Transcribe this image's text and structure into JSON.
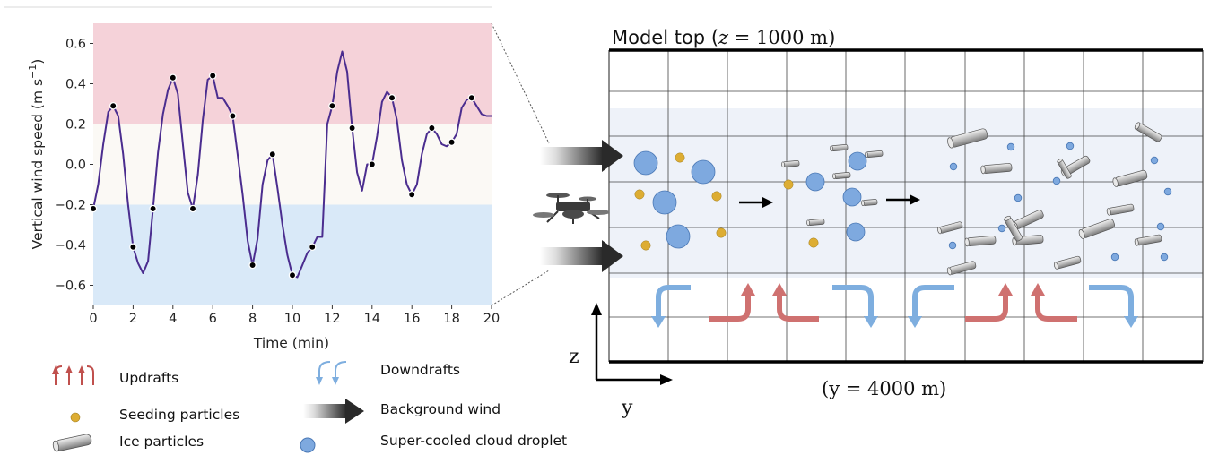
{
  "chart_data": {
    "type": "line",
    "xlabel": "Time (min)",
    "ylabel_main": "Vertical wind speed (m s",
    "ylabel_sup": "−1",
    "ylabel_close": ")",
    "xlim": [
      0,
      20
    ],
    "ylim": [
      -0.7,
      0.7
    ],
    "xticks": [
      0,
      2,
      4,
      6,
      8,
      10,
      12,
      14,
      16,
      18,
      20
    ],
    "yticks": [
      -0.6,
      -0.4,
      -0.2,
      0.0,
      0.2,
      0.4,
      0.6
    ],
    "ytick_labels": [
      "−0.6",
      "−0.4",
      "−0.2",
      "0.0",
      "0.2",
      "0.4",
      "0.6"
    ],
    "bands": [
      {
        "from": 0.2,
        "to": 0.7,
        "color": "#f5d2d9"
      },
      {
        "from": -0.2,
        "to": 0.2,
        "color": "#fbf9f5"
      },
      {
        "from": -0.7,
        "to": -0.2,
        "color": "#d9e9f8"
      }
    ],
    "line_color": "#4b2d8f",
    "series": [
      {
        "x": [
          0,
          0.25,
          0.5,
          0.75,
          1,
          1.25,
          1.5,
          1.75,
          2,
          2.25,
          2.5,
          2.75,
          3,
          3.25,
          3.5,
          3.75,
          4,
          4.25,
          4.5,
          4.75,
          5,
          5.25,
          5.5,
          5.75,
          6,
          6.25,
          6.5,
          6.75,
          7,
          7.25,
          7.5,
          7.75,
          8,
          8.25,
          8.5,
          8.75,
          9,
          9.25,
          9.5,
          9.75,
          10,
          10.25,
          10.5,
          10.75,
          11,
          11.25,
          11.5,
          11.75,
          12,
          12.25,
          12.5,
          12.75,
          13,
          13.25,
          13.5,
          13.75,
          14,
          14.25,
          14.5,
          14.75,
          15,
          15.25,
          15.5,
          15.75,
          16,
          16.25,
          16.5,
          16.75,
          17,
          17.25,
          17.5,
          17.75,
          18,
          18.25,
          18.5,
          18.75,
          19,
          19.25,
          19.5,
          19.75,
          20
        ],
        "y": [
          -0.22,
          -0.1,
          0.1,
          0.26,
          0.29,
          0.24,
          0.05,
          -0.2,
          -0.41,
          -0.49,
          -0.54,
          -0.48,
          -0.22,
          0.06,
          0.25,
          0.37,
          0.43,
          0.35,
          0.1,
          -0.14,
          -0.22,
          -0.05,
          0.22,
          0.42,
          0.44,
          0.33,
          0.33,
          0.29,
          0.24,
          0.05,
          -0.15,
          -0.38,
          -0.5,
          -0.37,
          -0.1,
          0.02,
          0.05,
          -0.12,
          -0.3,
          -0.45,
          -0.55,
          -0.56,
          -0.5,
          -0.44,
          -0.41,
          -0.36,
          -0.36,
          0.2,
          0.29,
          0.46,
          0.56,
          0.46,
          0.18,
          -0.04,
          -0.13,
          0.0,
          0.0,
          0.14,
          0.31,
          0.36,
          0.33,
          0.22,
          0.02,
          -0.1,
          -0.15,
          -0.1,
          0.05,
          0.15,
          0.18,
          0.15,
          0.1,
          0.09,
          0.11,
          0.15,
          0.28,
          0.32,
          0.33,
          0.29,
          0.25,
          0.24,
          0.24
        ]
      }
    ],
    "markers": {
      "x": [
        0,
        1,
        2,
        3,
        4,
        5,
        6,
        7,
        8,
        9,
        10,
        11,
        12,
        13,
        14,
        15,
        16,
        17,
        18,
        19
      ],
      "y": [
        -0.22,
        0.29,
        -0.41,
        -0.22,
        0.43,
        -0.22,
        0.44,
        0.24,
        -0.5,
        0.05,
        -0.55,
        -0.41,
        0.29,
        0.18,
        0.0,
        0.33,
        -0.15,
        0.18,
        0.11,
        0.33
      ]
    }
  },
  "diagram": {
    "model_top_prefix": "Model top (",
    "model_top_var": "z",
    "model_top_suffix": " = 1000 m)",
    "y_domain_label": "(y = 4000 m)",
    "z_axis_label": "z",
    "y_axis_label": "y"
  },
  "legend": {
    "updrafts": "Updrafts",
    "downdrafts": "Downdrafts",
    "seeding_particles": "Seeding particles",
    "background_wind": "Background wind",
    "ice_particles": "Ice particles",
    "cloud_droplet": "Super-cooled cloud droplet"
  },
  "colors": {
    "updraft": "#cf7170",
    "downdraft": "#7eaedf",
    "seeding": "#ddad33",
    "droplet": "#7ea9df",
    "droplet_edge": "#4a78b5",
    "cloud_layer": "#eef2f9",
    "grid": "#444444"
  }
}
